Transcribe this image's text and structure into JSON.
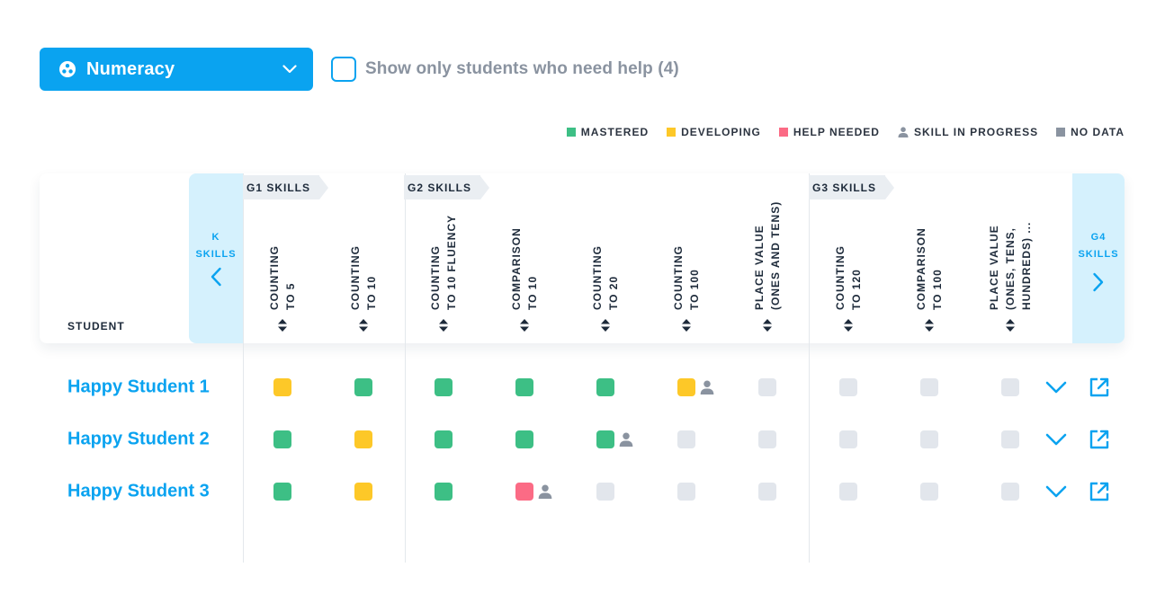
{
  "subject_select": {
    "label": "Numeracy",
    "icon": "numeracy-icon"
  },
  "help_filter": {
    "label": "Show only students who need help (4)",
    "checked": false
  },
  "legend": {
    "mastered": "MASTERED",
    "developing": "DEVELOPING",
    "help_needed": "HELP NEEDED",
    "in_progress": "SKILL IN PROGRESS",
    "no_data": "NO DATA"
  },
  "colors": {
    "accent": "#0aa3f0",
    "mastered": "#3dbf85",
    "developing": "#fdc828",
    "help_needed": "#fb6b85",
    "no_data": "#e2e6ec",
    "in_progress": "#8a93a0"
  },
  "table": {
    "student_heading": "STUDENT",
    "prev_grade": {
      "line1": "K",
      "line2": "SKILLS"
    },
    "next_grade": {
      "line1": "G4",
      "line2": "SKILLS"
    },
    "grades": [
      {
        "label": "G1 SKILLS"
      },
      {
        "label": "G2 SKILLS"
      },
      {
        "label": "G3 SKILLS"
      }
    ],
    "skills": [
      {
        "line1": "COUNTING",
        "line2": "TO 5"
      },
      {
        "line1": "COUNTING",
        "line2": "TO 10"
      },
      {
        "line1": "COUNTING",
        "line2": "TO 10 FLUENCY"
      },
      {
        "line1": "COMPARISON",
        "line2": "TO 10"
      },
      {
        "line1": "COUNTING",
        "line2": "TO 20"
      },
      {
        "line1": "COUNTING",
        "line2": "TO 100"
      },
      {
        "line1": "PLACE VALUE",
        "line2": "(ONES AND TENS)"
      },
      {
        "line1": "COUNTING",
        "line2": "TO 120"
      },
      {
        "line1": "COMPARISON",
        "line2": "TO 100"
      },
      {
        "line1": "PLACE VALUE",
        "line2": "(ONES, TENS,",
        "line3": "HUNDREDS) ..."
      }
    ],
    "students": [
      {
        "name": "Happy Student 1",
        "cells": [
          {
            "status": "developing"
          },
          {
            "status": "mastered"
          },
          {
            "status": "mastered"
          },
          {
            "status": "mastered"
          },
          {
            "status": "mastered"
          },
          {
            "status": "developing",
            "in_progress": true
          },
          {
            "status": "nodata"
          },
          {
            "status": "nodata"
          },
          {
            "status": "nodata"
          },
          {
            "status": "nodata"
          }
        ]
      },
      {
        "name": "Happy Student 2",
        "cells": [
          {
            "status": "mastered"
          },
          {
            "status": "developing"
          },
          {
            "status": "mastered"
          },
          {
            "status": "mastered"
          },
          {
            "status": "mastered",
            "in_progress": true
          },
          {
            "status": "nodata"
          },
          {
            "status": "nodata"
          },
          {
            "status": "nodata"
          },
          {
            "status": "nodata"
          },
          {
            "status": "nodata"
          }
        ]
      },
      {
        "name": "Happy Student 3",
        "cells": [
          {
            "status": "mastered"
          },
          {
            "status": "developing"
          },
          {
            "status": "mastered"
          },
          {
            "status": "help",
            "in_progress": true
          },
          {
            "status": "nodata"
          },
          {
            "status": "nodata"
          },
          {
            "status": "nodata"
          },
          {
            "status": "nodata"
          },
          {
            "status": "nodata"
          },
          {
            "status": "nodata"
          }
        ]
      }
    ]
  }
}
